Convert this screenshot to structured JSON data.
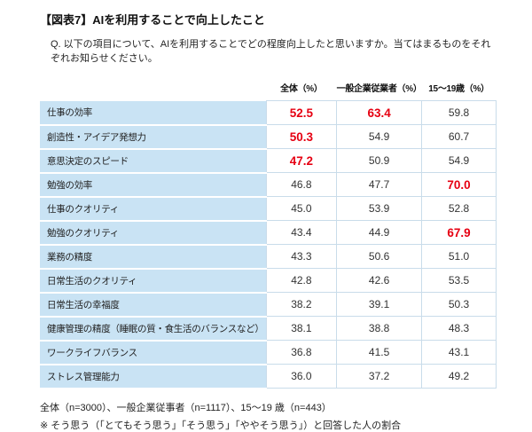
{
  "title": "【図表7】AIを利用することで向上したこと",
  "question": "Q. 以下の項目について、AIを利用することでどの程度向上したと思いますか。当てはまるものをそれぞれお知らせください。",
  "table": {
    "columns": [
      "全体（%）",
      "一般企業従業者（%）",
      "15～19歳（%）"
    ],
    "rows": [
      {
        "label": "仕事の効率",
        "values": [
          "52.5",
          "63.4",
          "59.8"
        ]
      },
      {
        "label": "創造性・アイデア発想力",
        "values": [
          "50.3",
          "54.9",
          "60.7"
        ]
      },
      {
        "label": "意思決定のスピード",
        "values": [
          "47.2",
          "50.9",
          "54.9"
        ]
      },
      {
        "label": "勉強の効率",
        "values": [
          "46.8",
          "47.7",
          "70.0"
        ]
      },
      {
        "label": "仕事のクオリティ",
        "values": [
          "45.0",
          "53.9",
          "52.8"
        ]
      },
      {
        "label": "勉強のクオリティ",
        "values": [
          "43.4",
          "44.9",
          "67.9"
        ]
      },
      {
        "label": "業務の精度",
        "values": [
          "43.3",
          "50.6",
          "51.0"
        ]
      },
      {
        "label": "日常生活のクオリティ",
        "values": [
          "42.8",
          "42.6",
          "53.5"
        ]
      },
      {
        "label": "日常生活の幸福度",
        "values": [
          "38.2",
          "39.1",
          "50.3"
        ]
      },
      {
        "label": "健康管理の精度（睡眠の質・食生活のバランスなど）",
        "values": [
          "38.1",
          "38.8",
          "48.3"
        ]
      },
      {
        "label": "ワークライフバランス",
        "values": [
          "36.8",
          "41.5",
          "43.1"
        ]
      },
      {
        "label": "ストレス管理能力",
        "values": [
          "36.0",
          "37.2",
          "49.2"
        ]
      }
    ]
  },
  "footnotes": {
    "samples": "全体（n=3000）、一般企業従事者（n=1117）、15～19 歳（n=443）",
    "definition": "※ そう思う（「とてもそう思う」「そう思う」「ややそう思う」）と回答した人の割合"
  },
  "colors": {
    "highlight_red": "#e60012",
    "label_background": "#c9e3f4",
    "grid_line": "#c9dcea"
  },
  "chart_data": {
    "type": "table",
    "title": "【図表7】AIを利用することで向上したこと",
    "categories": [
      "仕事の効率",
      "創造性・アイデア発想力",
      "意思決定のスピード",
      "勉強の効率",
      "仕事のクオリティ",
      "勉強のクオリティ",
      "業務の精度",
      "日常生活のクオリティ",
      "日常生活の幸福度",
      "健康管理の精度（睡眠の質・食生活のバランスなど）",
      "ワークライフバランス",
      "ストレス管理能力"
    ],
    "series": [
      {
        "name": "全体（%）",
        "values": [
          52.5,
          50.3,
          47.2,
          46.8,
          45.0,
          43.4,
          43.3,
          42.8,
          38.2,
          38.1,
          36.8,
          36.0
        ]
      },
      {
        "name": "一般企業従業者（%）",
        "values": [
          63.4,
          54.9,
          50.9,
          47.7,
          53.9,
          44.9,
          50.6,
          42.6,
          39.1,
          38.8,
          41.5,
          37.2
        ]
      },
      {
        "name": "15～19歳（%）",
        "values": [
          59.8,
          60.7,
          54.9,
          70.0,
          52.8,
          67.9,
          51.0,
          53.5,
          50.3,
          48.3,
          43.1,
          49.2
        ]
      }
    ],
    "highlighted_cells_row_col": [
      [
        0,
        0
      ],
      [
        0,
        1
      ],
      [
        1,
        0
      ],
      [
        2,
        0
      ],
      [
        3,
        2
      ],
      [
        5,
        2
      ]
    ],
    "highlight_meaning": "notably high values shown in bold red",
    "unit": "%"
  }
}
